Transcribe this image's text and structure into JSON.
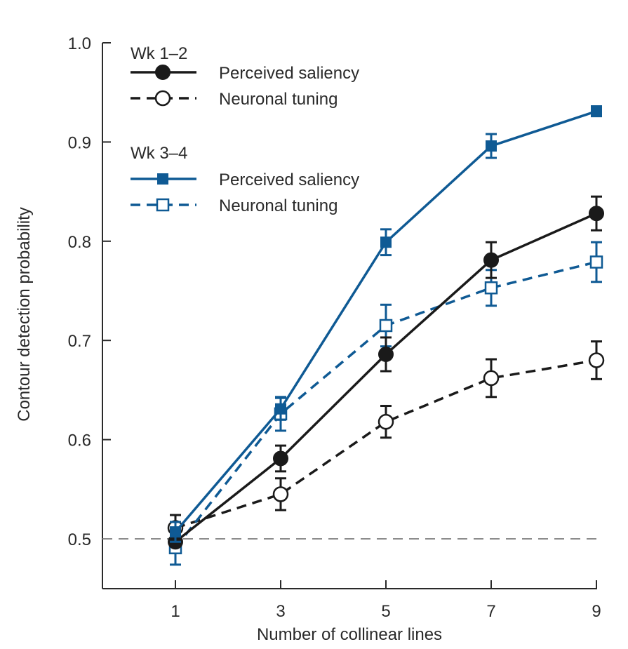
{
  "chart_data": {
    "type": "line",
    "title": "",
    "xlabel": "Number of collinear lines",
    "ylabel": "Contour detection probability",
    "x": [
      1,
      3,
      5,
      7,
      9
    ],
    "xticks": [
      "1",
      "3",
      "5",
      "7",
      "9"
    ],
    "xlim": [
      -0.4,
      9
    ],
    "ylim": [
      0.45,
      1.0
    ],
    "yticks": [
      "0.5",
      "0.6",
      "0.7",
      "0.8",
      "0.9",
      "1.0"
    ],
    "ytick_values": [
      0.5,
      0.6,
      0.7,
      0.8,
      0.9,
      1.0
    ],
    "grid": false,
    "reference_line": {
      "y": 0.5,
      "style": "dashed",
      "color": "#8c8c8c"
    },
    "legend_position": "top-left",
    "legend_groups": [
      {
        "title": "Wk 1–2",
        "entries": [
          "Perceived saliency",
          "Neuronal tuning"
        ]
      },
      {
        "title": "Wk 3–4",
        "entries": [
          "Perceived saliency",
          "Neuronal tuning"
        ]
      }
    ],
    "series": [
      {
        "name": "Wk 1–2 Perceived saliency",
        "group": "Wk 1–2",
        "color": "#1a1a1a",
        "line": "solid",
        "marker": "filled-circle",
        "values": [
          0.497,
          0.581,
          0.686,
          0.781,
          0.828
        ],
        "errors": [
          0.0,
          0.013,
          0.017,
          0.018,
          0.017
        ]
      },
      {
        "name": "Wk 1–2 Neuronal tuning",
        "group": "Wk 1–2",
        "color": "#1a1a1a",
        "line": "dashed",
        "marker": "open-circle",
        "values": [
          0.511,
          0.545,
          0.618,
          0.662,
          0.68
        ],
        "errors": [
          0.013,
          0.016,
          0.016,
          0.019,
          0.019
        ]
      },
      {
        "name": "Wk 3–4 Perceived saliency",
        "group": "Wk 3–4",
        "color": "#0f5a94",
        "line": "solid",
        "marker": "filled-square",
        "values": [
          0.507,
          0.631,
          0.799,
          0.896,
          0.931
        ],
        "errors": [
          0.01,
          0.011,
          0.013,
          0.012,
          0.005
        ]
      },
      {
        "name": "Wk 3–4 Neuronal tuning",
        "group": "Wk 3–4",
        "color": "#0f5a94",
        "line": "dashed",
        "marker": "open-square",
        "values": [
          0.491,
          0.626,
          0.715,
          0.753,
          0.779
        ],
        "errors": [
          0.017,
          0.017,
          0.021,
          0.018,
          0.02
        ]
      }
    ]
  }
}
